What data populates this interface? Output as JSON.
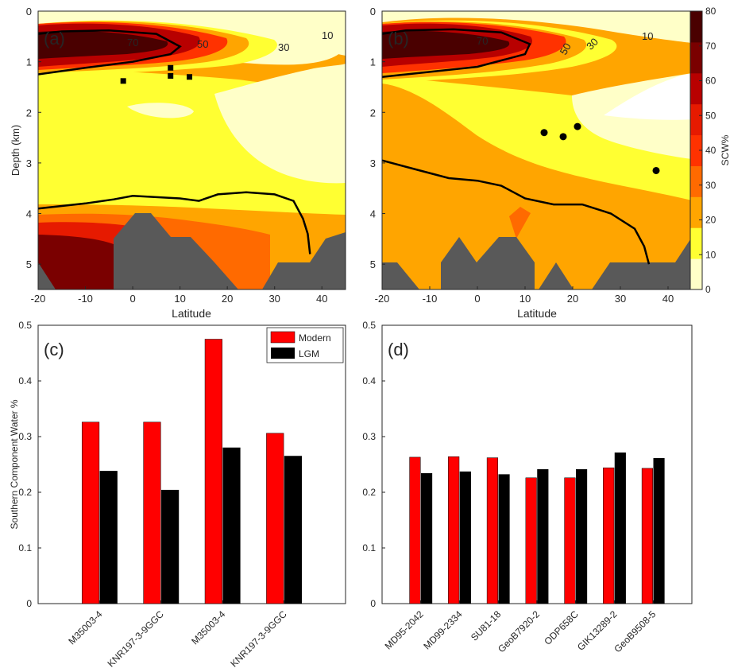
{
  "colors": {
    "modern": "#ff0000",
    "lgm": "#000000",
    "terrain": "#595959",
    "scw_scale": [
      "#ffffc8",
      "#ffff32",
      "#ffa500",
      "#ff6a00",
      "#ff3200",
      "#e61a00",
      "#b80000",
      "#7a0000",
      "#4a0000"
    ]
  },
  "chart_data": [
    {
      "panel": "(a)",
      "type": "heatmap",
      "xlabel": "Latitude",
      "ylabel": "Depth (km)",
      "xlim": [
        -20,
        45
      ],
      "ylim": [
        5.5,
        0
      ],
      "xticks": [
        "-20",
        "-10",
        "0",
        "10",
        "20",
        "30",
        "40"
      ],
      "yticks": [
        "0",
        "1",
        "2",
        "3",
        "4",
        "5"
      ],
      "contour_labels": [
        "70",
        "50",
        "30",
        "10"
      ],
      "cores": {
        "marker": "square",
        "points": [
          [
            -2,
            1.38
          ],
          [
            8,
            1.12
          ],
          [
            8,
            1.28
          ],
          [
            12,
            1.3
          ]
        ]
      },
      "thick_contour": [
        [
          -20,
          1.25
        ],
        [
          -10,
          1.12
        ],
        [
          0,
          1.0
        ],
        [
          8,
          0.85
        ],
        [
          10,
          0.7
        ],
        [
          5,
          0.45
        ],
        [
          -5,
          0.38
        ],
        [
          -15,
          0.4
        ],
        [
          -20,
          0.45
        ]
      ],
      "deep_contour": [
        [
          -20,
          3.9
        ],
        [
          -10,
          3.8
        ],
        [
          -4,
          3.72
        ],
        [
          0,
          3.65
        ],
        [
          10,
          3.7
        ],
        [
          14,
          3.75
        ],
        [
          18,
          3.62
        ],
        [
          24,
          3.58
        ],
        [
          30,
          3.62
        ],
        [
          34,
          3.75
        ],
        [
          36,
          4.1
        ],
        [
          37,
          4.4
        ],
        [
          37.5,
          4.8
        ]
      ]
    },
    {
      "panel": "(b)",
      "type": "heatmap",
      "xlabel": "Latitude",
      "ylabel": "",
      "xlim": [
        -20,
        45
      ],
      "ylim": [
        5.5,
        0
      ],
      "xticks": [
        "-20",
        "-10",
        "0",
        "10",
        "20",
        "30",
        "40"
      ],
      "yticks": [
        "0",
        "1",
        "2",
        "3",
        "4",
        "5"
      ],
      "contour_labels": [
        "70",
        "50",
        "30",
        "10"
      ],
      "colorbar": {
        "label": "SCW%",
        "ticks": [
          "0",
          "10",
          "20",
          "30",
          "40",
          "50",
          "60",
          "70",
          "80"
        ],
        "range": [
          0,
          80
        ]
      },
      "cores": {
        "marker": "circle",
        "points": [
          [
            14,
            2.4
          ],
          [
            18,
            2.48
          ],
          [
            21,
            2.28
          ],
          [
            37.5,
            3.15
          ]
        ]
      },
      "thick_contour": [
        [
          -20,
          1.3
        ],
        [
          -10,
          1.2
        ],
        [
          0,
          1.1
        ],
        [
          10,
          0.85
        ],
        [
          11,
          0.65
        ],
        [
          5,
          0.42
        ],
        [
          -5,
          0.36
        ],
        [
          -15,
          0.38
        ],
        [
          -20,
          0.45
        ]
      ],
      "deep_contour": [
        [
          -20,
          2.95
        ],
        [
          -12,
          3.15
        ],
        [
          -6,
          3.3
        ],
        [
          0,
          3.35
        ],
        [
          5,
          3.45
        ],
        [
          10,
          3.7
        ],
        [
          16,
          3.82
        ],
        [
          22,
          3.82
        ],
        [
          28,
          4.0
        ],
        [
          33,
          4.3
        ],
        [
          35,
          4.65
        ],
        [
          36,
          5.0
        ]
      ]
    },
    {
      "panel": "(c)",
      "type": "bar",
      "ylabel": "Southern Component Water %",
      "ylim": [
        0,
        0.5
      ],
      "yticks": [
        "0",
        "0.1",
        "0.2",
        "0.3",
        "0.4",
        "0.5"
      ],
      "categories": [
        "M35003-4",
        "KNR197-3-9GGC",
        "M35003-4",
        "KNR197-3-9GGC"
      ],
      "series": [
        {
          "name": "Modern",
          "values": [
            0.326,
            0.326,
            0.475,
            0.306
          ]
        },
        {
          "name": "LGM",
          "values": [
            0.238,
            0.204,
            0.28,
            0.265
          ]
        }
      ],
      "legend": "top-right"
    },
    {
      "panel": "(d)",
      "type": "bar",
      "ylabel": "",
      "ylim": [
        0,
        0.5
      ],
      "yticks": [
        "0",
        "0.1",
        "0.2",
        "0.3",
        "0.4",
        "0.5"
      ],
      "categories": [
        "MD95-2042",
        "MD99-2334",
        "SU81-18",
        "GeoB7920-2",
        "ODP658C",
        "GIK13289-2",
        "GeoB9508-5"
      ],
      "series": [
        {
          "name": "Modern",
          "values": [
            0.263,
            0.264,
            0.262,
            0.226,
            0.226,
            0.244,
            0.243
          ]
        },
        {
          "name": "LGM",
          "values": [
            0.234,
            0.237,
            0.232,
            0.241,
            0.241,
            0.271,
            0.261
          ]
        }
      ]
    }
  ]
}
